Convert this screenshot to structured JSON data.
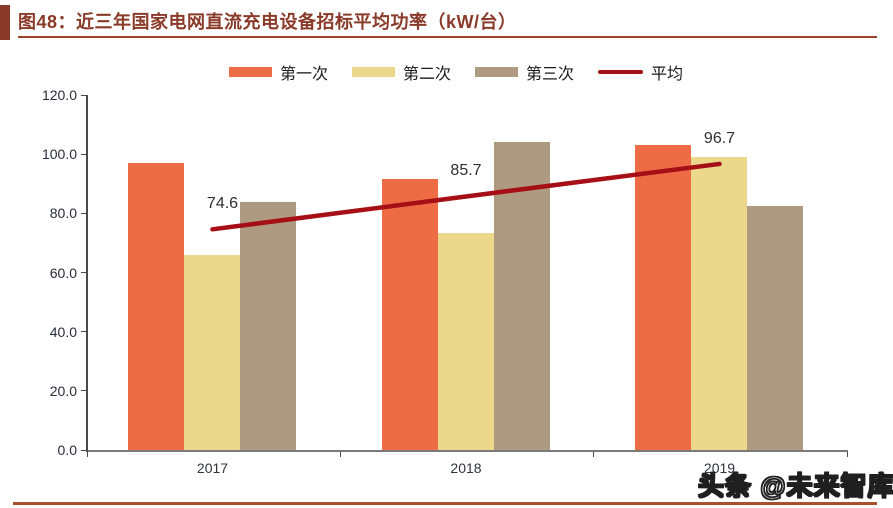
{
  "figure": {
    "title": "图48：近三年国家电网直流充电设备招标平均功率（kW/台）",
    "accent_color": "#8A3A28",
    "title_color": "#8A3A28",
    "underline_color": "#9C4329",
    "bottom_rule_color": "#A9512E",
    "axis_color": "#4a4a4a",
    "baseline_color": "#7a7a7a"
  },
  "watermark": {
    "logo_text": "头条",
    "handle": "@未来智库"
  },
  "chart_data": {
    "type": "bar",
    "title": "近三年国家电网直流充电设备招标平均功率（kW/台）",
    "categories": [
      "2017",
      "2018",
      "2019"
    ],
    "series": [
      {
        "name": "第一次",
        "color": "#ED6C45",
        "values": [
          97.0,
          91.5,
          103.0
        ]
      },
      {
        "name": "第二次",
        "color": "#EBD88A",
        "values": [
          66.0,
          73.5,
          99.0
        ]
      },
      {
        "name": "第三次",
        "color": "#AE9A80",
        "values": [
          84.0,
          104.0,
          82.5
        ]
      }
    ],
    "line_series": {
      "name": "平均",
      "color": "#A50F15",
      "values": [
        74.6,
        85.7,
        96.7
      ],
      "labels": [
        "74.6",
        "85.7",
        "96.7"
      ]
    },
    "ylim": [
      0,
      120
    ],
    "ytick_step": 20,
    "ytick_labels": [
      "0.0",
      "20.0",
      "40.0",
      "60.0",
      "80.0",
      "100.0",
      "120.0"
    ],
    "grid": false,
    "legend_position": "top-center"
  }
}
